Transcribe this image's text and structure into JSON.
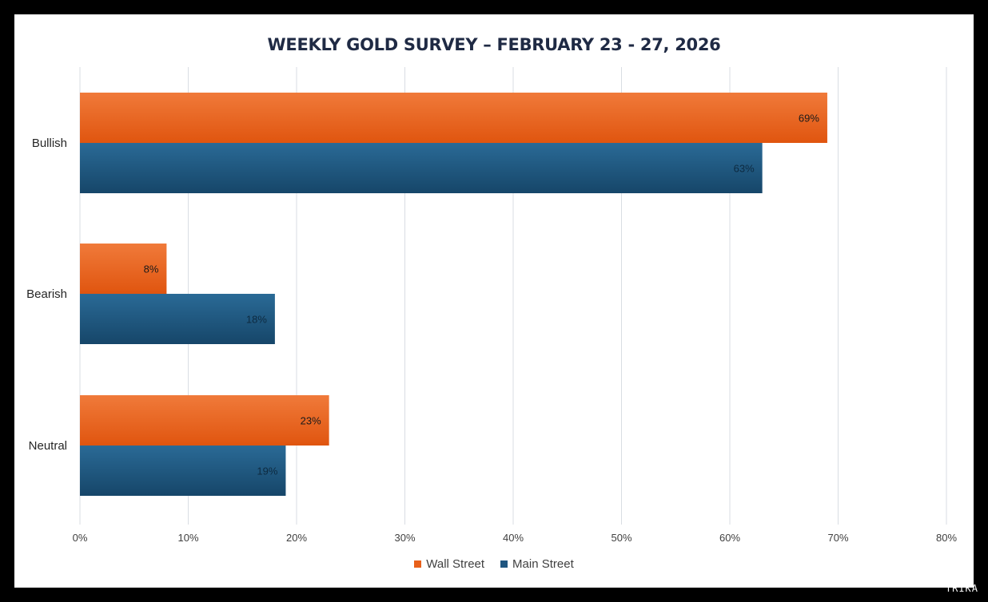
{
  "chart_data": {
    "type": "bar",
    "orientation": "horizontal",
    "title": "WEEKLY GOLD SURVEY – FEBRUARY 23 - 27, 2026",
    "categories": [
      "Bullish",
      "Bearish",
      "Neutral"
    ],
    "series": [
      {
        "name": "Wall Street",
        "values": [
          69,
          8,
          23
        ],
        "labels": [
          "69%",
          "8%",
          "23%"
        ],
        "color": "#e8601a"
      },
      {
        "name": "Main Street",
        "values": [
          63,
          18,
          19
        ],
        "labels": [
          "63%",
          "18%",
          "19%"
        ],
        "color": "#1f5680"
      }
    ],
    "xlim": [
      0,
      80
    ],
    "xticks": [
      0,
      10,
      20,
      30,
      40,
      50,
      60,
      70,
      80
    ],
    "xtick_labels": [
      "0%",
      "10%",
      "20%",
      "30%",
      "40%",
      "50%",
      "60%",
      "70%",
      "80%"
    ],
    "grid": true,
    "legend_position": "bottom"
  },
  "watermark": "TRIKA"
}
